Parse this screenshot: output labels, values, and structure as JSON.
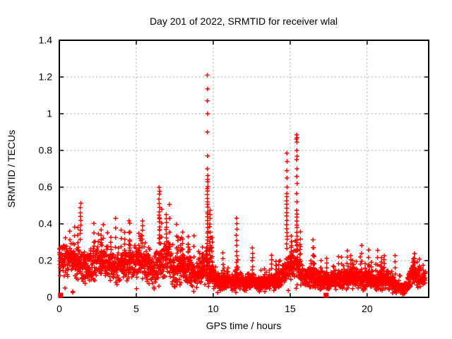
{
  "chart_data": {
    "type": "scatter",
    "title": "Day 201 of 2022, SRMTID for receiver wlal",
    "xlabel": "GPS time / hours",
    "ylabel": "SRMTID / TECUs",
    "xlim": [
      0,
      24
    ],
    "ylim": [
      0,
      1.4
    ],
    "xticks": [
      0,
      5,
      10,
      15,
      20
    ],
    "xtick_labels": [
      "0",
      "5",
      "10",
      "15",
      "20"
    ],
    "yticks": [
      0,
      0.2,
      0.4,
      0.6,
      0.8,
      1.0,
      1.2,
      1.4
    ],
    "ytick_labels": [
      "0",
      "0.2",
      "0.4",
      "0.6",
      "0.8",
      "1",
      "1.2",
      "1.4"
    ],
    "grid": true,
    "legend": "none",
    "marker": "plus",
    "marker_color": "#ff0000",
    "grid_color": "#a6a6a6",
    "border_color": "#000000",
    "background_color": "#ffffff",
    "seed": 42,
    "n_points": 2600,
    "t_max": 23.8,
    "band_envelope_note": "triples of [hour, mean SRMTID, half-spread] describing the dense noisy band",
    "band": [
      [
        0.0,
        0.21,
        0.08
      ],
      [
        0.7,
        0.2,
        0.08
      ],
      [
        1.3,
        0.18,
        0.08
      ],
      [
        1.8,
        0.16,
        0.08
      ],
      [
        2.3,
        0.19,
        0.09
      ],
      [
        2.8,
        0.21,
        0.09
      ],
      [
        3.3,
        0.18,
        0.08
      ],
      [
        3.8,
        0.16,
        0.08
      ],
      [
        4.3,
        0.18,
        0.08
      ],
      [
        4.8,
        0.18,
        0.08
      ],
      [
        5.3,
        0.2,
        0.09
      ],
      [
        5.8,
        0.16,
        0.08
      ],
      [
        6.2,
        0.13,
        0.08
      ],
      [
        6.6,
        0.2,
        0.09
      ],
      [
        7.1,
        0.21,
        0.09
      ],
      [
        7.5,
        0.13,
        0.08
      ],
      [
        8.0,
        0.17,
        0.08
      ],
      [
        8.6,
        0.13,
        0.07
      ],
      [
        9.1,
        0.12,
        0.06
      ],
      [
        9.55,
        0.17,
        0.09
      ],
      [
        9.9,
        0.13,
        0.07
      ],
      [
        10.2,
        0.085,
        0.04
      ],
      [
        11.0,
        0.08,
        0.035
      ],
      [
        11.5,
        0.1,
        0.05
      ],
      [
        12.0,
        0.075,
        0.04
      ],
      [
        12.5,
        0.095,
        0.045
      ],
      [
        13.0,
        0.07,
        0.035
      ],
      [
        13.6,
        0.08,
        0.04
      ],
      [
        14.2,
        0.1,
        0.05
      ],
      [
        14.7,
        0.14,
        0.06
      ],
      [
        15.1,
        0.17,
        0.07
      ],
      [
        15.5,
        0.15,
        0.07
      ],
      [
        15.9,
        0.1,
        0.05
      ],
      [
        16.4,
        0.11,
        0.05
      ],
      [
        17.0,
        0.09,
        0.045
      ],
      [
        17.5,
        0.1,
        0.05
      ],
      [
        18.0,
        0.09,
        0.045
      ],
      [
        18.6,
        0.1,
        0.05
      ],
      [
        19.1,
        0.11,
        0.055
      ],
      [
        19.6,
        0.09,
        0.05
      ],
      [
        20.1,
        0.1,
        0.05
      ],
      [
        20.6,
        0.09,
        0.048
      ],
      [
        21.1,
        0.1,
        0.05
      ],
      [
        21.6,
        0.08,
        0.045
      ],
      [
        22.0,
        0.06,
        0.035
      ],
      [
        22.4,
        0.045,
        0.025
      ],
      [
        22.8,
        0.09,
        0.05
      ],
      [
        23.05,
        0.14,
        0.055
      ],
      [
        23.3,
        0.11,
        0.05
      ],
      [
        23.6,
        0.09,
        0.04
      ],
      [
        23.85,
        0.115,
        0.035
      ]
    ],
    "spike_columns_note": "vertical spike columns [hour, ymin, ymax, n_points]",
    "spike_columns": [
      [
        1.38,
        0.32,
        0.51,
        9
      ],
      [
        2.72,
        0.2,
        0.37,
        7
      ],
      [
        3.35,
        0.18,
        0.33,
        6
      ],
      [
        4.25,
        0.2,
        0.35,
        6
      ],
      [
        5.4,
        0.27,
        0.41,
        7
      ],
      [
        6.5,
        0.3,
        0.6,
        15
      ],
      [
        6.95,
        0.28,
        0.45,
        9
      ],
      [
        8.0,
        0.15,
        0.35,
        8
      ],
      [
        9.63,
        0.12,
        0.66,
        32
      ],
      [
        9.78,
        0.1,
        0.48,
        16
      ],
      [
        9.93,
        0.08,
        0.33,
        10
      ],
      [
        11.52,
        0.1,
        0.43,
        12
      ],
      [
        12.55,
        0.07,
        0.27,
        9
      ],
      [
        14.25,
        0.06,
        0.2,
        7
      ],
      [
        14.78,
        0.27,
        0.55,
        14
      ],
      [
        15.1,
        0.14,
        0.3,
        8
      ],
      [
        15.43,
        0.26,
        0.47,
        12
      ],
      [
        16.35,
        0.06,
        0.2,
        7
      ],
      [
        19.05,
        0.05,
        0.2,
        8
      ],
      [
        23.0,
        0.08,
        0.21,
        8
      ]
    ],
    "outliers_note": "isolated high points [hour, SRMTID]",
    "outliers": [
      [
        9.62,
        1.21
      ],
      [
        9.63,
        1.135
      ],
      [
        9.62,
        1.07
      ],
      [
        9.63,
        1.0
      ],
      [
        9.62,
        0.9
      ],
      [
        9.63,
        0.77
      ],
      [
        9.62,
        0.7
      ],
      [
        14.78,
        0.785
      ],
      [
        14.8,
        0.74
      ],
      [
        14.78,
        0.69
      ],
      [
        14.79,
        0.65
      ],
      [
        14.8,
        0.6
      ],
      [
        14.78,
        0.565
      ],
      [
        15.42,
        0.885
      ],
      [
        15.45,
        0.87
      ],
      [
        15.4,
        0.862
      ],
      [
        15.44,
        0.845
      ],
      [
        15.43,
        0.8
      ],
      [
        15.45,
        0.768
      ],
      [
        15.42,
        0.75
      ],
      [
        15.44,
        0.7
      ],
      [
        15.43,
        0.658
      ],
      [
        15.45,
        0.62
      ],
      [
        15.42,
        0.565
      ],
      [
        15.44,
        0.52
      ]
    ],
    "square_markers_note": "filled red squares sitting on the x-axis",
    "square_markers": [
      [
        0.08,
        0
      ],
      [
        17.33,
        0
      ]
    ]
  }
}
